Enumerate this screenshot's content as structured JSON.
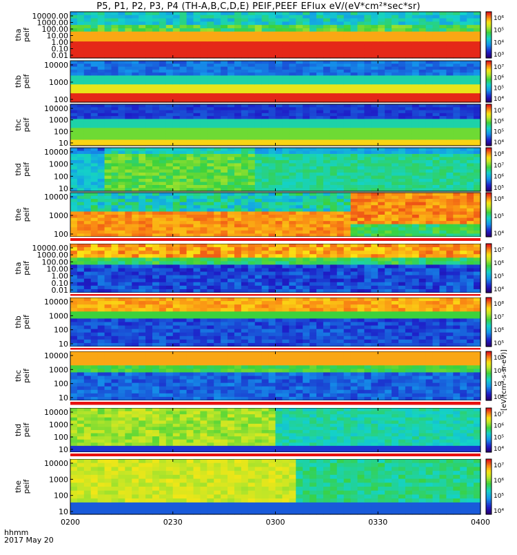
{
  "title": "P5, P1, P2, P3, P4 (TH-A,B,C,D,E) PEIF,PEEF EFlux eV/(eV*cm²*sec*sr)",
  "colorbar_unit": "[eV/(cm²-s-sr-eV)]",
  "x_caption": "hhmm",
  "date_caption": "2017 May 20",
  "chart_data": {
    "type": "heatmap",
    "title": "P5, P1, P2, P3, P4 (TH-A,B,C,D,E) PEIF,PEEF EFlux eV/(eV*cm²*sec*sr)",
    "x_range": [
      "02:00",
      "04:00"
    ],
    "x_ticks": [
      "0200",
      "0230",
      "0300",
      "0330",
      "0400"
    ],
    "y_scale": "log",
    "colormap": "rainbow",
    "colors": {
      "low": "#1d1db4",
      "mid": "#27d13a",
      "high": "#e8101a"
    },
    "panels": [
      {
        "id": "tha_peif_ion",
        "label1": "tha",
        "label2": "peif",
        "y_ticks": [
          "10000.00",
          "1000.00",
          "100.00",
          "10.00",
          "1.00",
          "0.10",
          "0.01"
        ],
        "cbar_ticks": [
          "10⁶",
          "10⁵",
          "10⁴",
          "10³"
        ]
      },
      {
        "id": "thb_peif_ion",
        "label1": "thb",
        "label2": "peif",
        "y_ticks": [
          "10000",
          "1000",
          "100"
        ],
        "cbar_ticks": [
          "10⁷",
          "10⁶",
          "10⁵",
          "10⁴"
        ]
      },
      {
        "id": "thc_peif_ion",
        "label1": "thc",
        "label2": "peif",
        "y_ticks": [
          "10000",
          "1000",
          "100",
          "10"
        ],
        "cbar_ticks": [
          "10⁷",
          "10⁶",
          "10⁵",
          "10⁴"
        ]
      },
      {
        "id": "thd_peif_ion",
        "label1": "thd",
        "label2": "peif",
        "y_ticks": [
          "10000",
          "1000",
          "100",
          "10"
        ],
        "cbar_ticks": [
          "10⁸",
          "10⁷",
          "10⁶",
          "10⁵"
        ]
      },
      {
        "id": "the_peif_ion",
        "label1": "the",
        "label2": "peif",
        "y_ticks": [
          "10000",
          "1000",
          "100"
        ],
        "cbar_ticks": [
          "10⁶",
          "10⁵",
          "10⁴"
        ]
      },
      {
        "id": "tha_peif_ele",
        "label1": "tha",
        "label2": "peif",
        "y_ticks": [
          "10000.00",
          "1000.00",
          "100.00",
          "10.00",
          "1.00",
          "0.10",
          "0.01"
        ],
        "cbar_ticks": [
          "10⁷",
          "10⁶",
          "10⁵",
          "10⁴"
        ]
      },
      {
        "id": "thb_peif_ele",
        "label1": "thb",
        "label2": "peif",
        "y_ticks": [
          "10000",
          "1000",
          "100",
          "10"
        ],
        "cbar_ticks": [
          "10⁸",
          "10⁷",
          "10⁶",
          "10⁵"
        ]
      },
      {
        "id": "thc_peif_ele",
        "label1": "thc",
        "label2": "peif",
        "y_ticks": [
          "10000",
          "1000",
          "100",
          "10"
        ],
        "cbar_ticks": [
          "10⁷",
          "10⁶",
          "10⁵",
          "10⁴"
        ]
      },
      {
        "id": "thd_peif_ele",
        "label1": "thd",
        "label2": "peif",
        "y_ticks": [
          "10000",
          "1000",
          "100",
          "10"
        ],
        "cbar_ticks": [
          "10⁷",
          "10⁶",
          "10⁵",
          "10⁴"
        ]
      },
      {
        "id": "the_peif_ele",
        "label1": "the",
        "label2": "peif",
        "y_ticks": [
          "10000",
          "1000",
          "100",
          "10"
        ],
        "cbar_ticks": [
          "10⁷",
          "10⁶",
          "10⁵",
          "10⁴"
        ]
      }
    ]
  }
}
